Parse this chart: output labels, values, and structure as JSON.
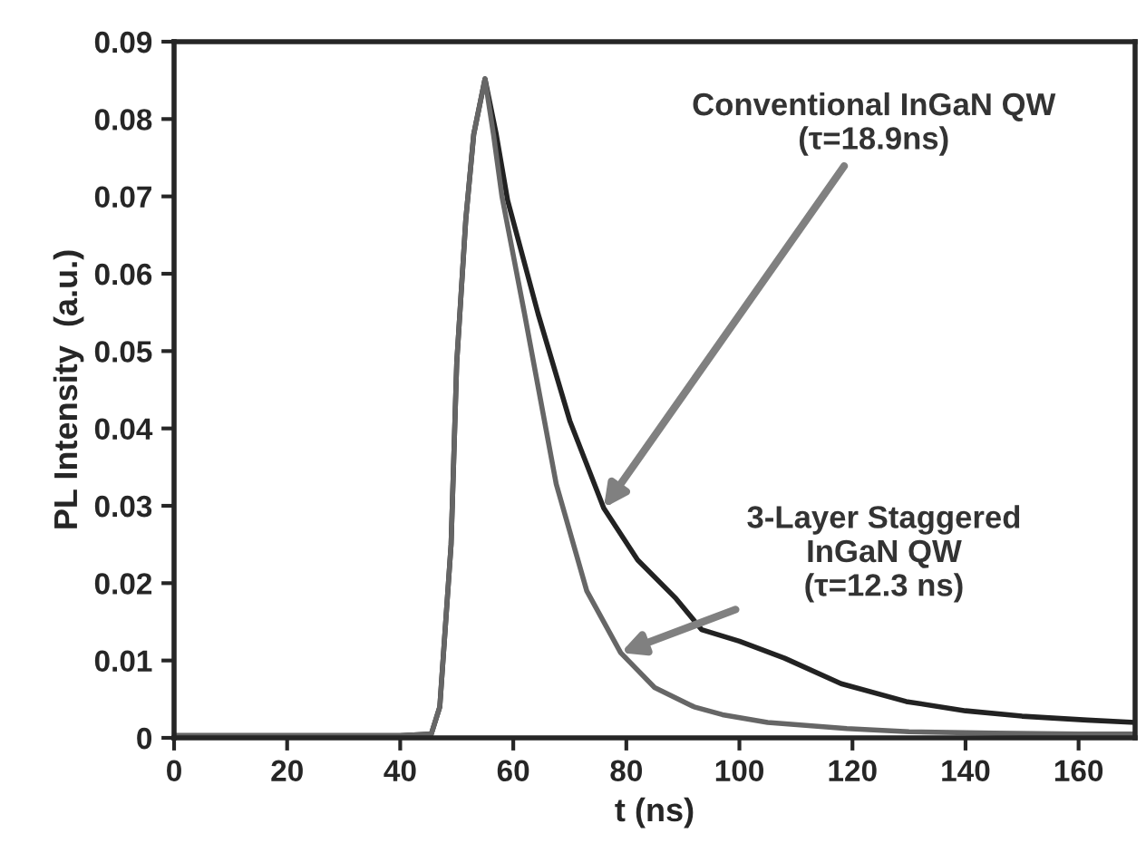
{
  "chart_data": {
    "type": "line",
    "xlabel": "t (ns)",
    "ylabel": "PL Intensity  (a.u.)",
    "xlim": [
      0,
      170
    ],
    "ylim": [
      0,
      0.09
    ],
    "xticks": [
      0,
      20,
      40,
      60,
      80,
      100,
      120,
      140,
      160
    ],
    "yticks": [
      0,
      0.01,
      0.02,
      0.03,
      0.04,
      0.05,
      0.06,
      0.07,
      0.08,
      0.09
    ],
    "marker": "none",
    "line_style": "solid",
    "legend": false,
    "series": [
      {
        "color": "#222222",
        "x": [
          0,
          10,
          20,
          30,
          40,
          45.5,
          47,
          49,
          50,
          51.6,
          53,
          55,
          57,
          59,
          64.4,
          70,
          76,
          82,
          88.8,
          93.3,
          100,
          108,
          118,
          129.5,
          140,
          150,
          161.5,
          170
        ],
        "values": [
          0.0003,
          0.0003,
          0.0003,
          0.0003,
          0.0003,
          0.0005,
          0.004,
          0.025,
          0.0485,
          0.067,
          0.078,
          0.0852,
          0.078,
          0.0695,
          0.0548,
          0.041,
          0.0297,
          0.023,
          0.018,
          0.014,
          0.0125,
          0.0103,
          0.007,
          0.0047,
          0.0035,
          0.0028,
          0.0023,
          0.002
        ]
      },
      {
        "color": "#666666",
        "x": [
          0,
          10,
          20,
          30,
          40,
          45.5,
          47,
          49,
          50,
          51.6,
          53,
          55,
          56.5,
          58,
          62,
          67.6,
          73,
          79,
          85,
          92,
          97,
          105,
          119,
          130,
          145,
          160,
          170
        ],
        "values": [
          0.0003,
          0.0003,
          0.0003,
          0.0003,
          0.0003,
          0.0005,
          0.004,
          0.025,
          0.0485,
          0.067,
          0.078,
          0.0852,
          0.078,
          0.07,
          0.0548,
          0.0328,
          0.019,
          0.011,
          0.0065,
          0.004,
          0.003,
          0.002,
          0.0012,
          0.0008,
          0.0006,
          0.0005,
          0.0005
        ]
      }
    ],
    "annotations": [
      {
        "text": "Conventional InGaN QW\n(τ=18.9ns)",
        "x": 76,
        "y": 0.0297
      },
      {
        "text": "3-Layer Staggered\nInGaN QW\n(τ=12.3 ns)",
        "x": 79,
        "y": 0.011
      }
    ]
  }
}
